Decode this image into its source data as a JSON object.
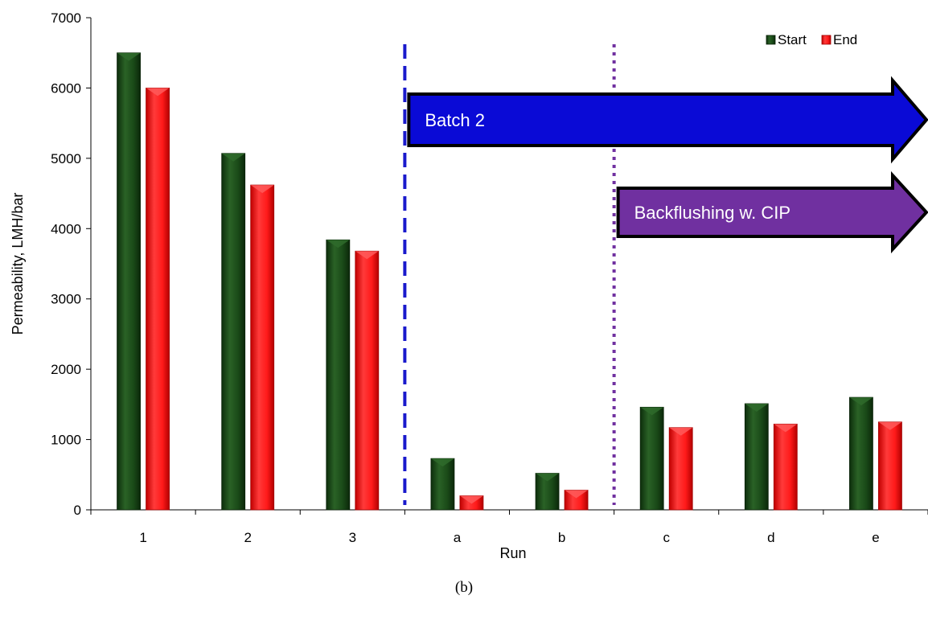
{
  "chart_data": {
    "type": "bar",
    "categories": [
      "1",
      "2",
      "3",
      "a",
      "b",
      "c",
      "d",
      "e"
    ],
    "series": [
      {
        "name": "Start",
        "color": "#1a4a18",
        "values": [
          6500,
          5070,
          3840,
          730,
          520,
          1460,
          1510,
          1600
        ]
      },
      {
        "name": "End",
        "color": "#ff1a1a",
        "values": [
          6000,
          4620,
          3680,
          200,
          280,
          1170,
          1220,
          1250
        ]
      }
    ],
    "xlabel": "Run",
    "ylabel": "Permeability, LMH/bar",
    "ylim": [
      0,
      7000
    ],
    "yticks": [
      0,
      1000,
      2000,
      3000,
      4000,
      5000,
      6000,
      7000
    ],
    "grid": false,
    "legend_position": "top-right",
    "annotations": [
      {
        "label": "Batch 2",
        "color": "#0a0ad6",
        "from_category": "a",
        "to": "right-edge"
      },
      {
        "label": "Backflushing w. CIP",
        "color": "#7030a0",
        "from_category": "c",
        "to": "right-edge"
      }
    ],
    "divider_lines": [
      {
        "between": [
          "3",
          "a"
        ],
        "style": "dashed",
        "color": "#1a1acc"
      },
      {
        "between": [
          "b",
          "c"
        ],
        "style": "dotted",
        "color": "#7030a0"
      }
    ]
  },
  "caption": "(b)"
}
